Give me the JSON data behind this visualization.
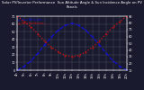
{
  "title": "Solar PV/Inverter Performance  Sun Altitude Angle & Sun Incidence Angle on PV Panels",
  "title_fontsize": 2.8,
  "x_hours": [
    4,
    5,
    6,
    7,
    8,
    9,
    10,
    11,
    12,
    13,
    14,
    15,
    16,
    17,
    18,
    19,
    20
  ],
  "sun_altitude": [
    0,
    5,
    12,
    22,
    33,
    43,
    52,
    58,
    61,
    58,
    52,
    43,
    33,
    22,
    12,
    5,
    0
  ],
  "sun_incidence": [
    90,
    82,
    74,
    64,
    53,
    44,
    37,
    32,
    30,
    32,
    37,
    44,
    53,
    64,
    74,
    82,
    90
  ],
  "altitude_color": "#1111cc",
  "incidence_color": "#cc1111",
  "ylim_left": [
    0,
    70
  ],
  "ylim_right": [
    10,
    90
  ],
  "yticks_left": [
    0,
    10,
    20,
    30,
    40,
    50,
    60,
    70
  ],
  "yticks_right": [
    10,
    20,
    30,
    40,
    50,
    60,
    70,
    80,
    90
  ],
  "xtick_labels": [
    "4h",
    "5h",
    "6h",
    "7h",
    "8h",
    "9h",
    "10h",
    "11h",
    "12h",
    "13h",
    "14h",
    "15h",
    "16h",
    "17h",
    "18h",
    "19h",
    "20h"
  ],
  "grid_color": "#aaaaaa",
  "bg_color": "#1a1a2e",
  "plot_bg_color": "#1a1a2e",
  "tick_color": "#ffffff",
  "legend1": "Sun Altitude ----",
  "legend2": "Sun Incidence .....",
  "legend_fontsize": 2.5,
  "tick_fontsize": 2.5,
  "line_width": 0.9,
  "marker_size": 0.8
}
